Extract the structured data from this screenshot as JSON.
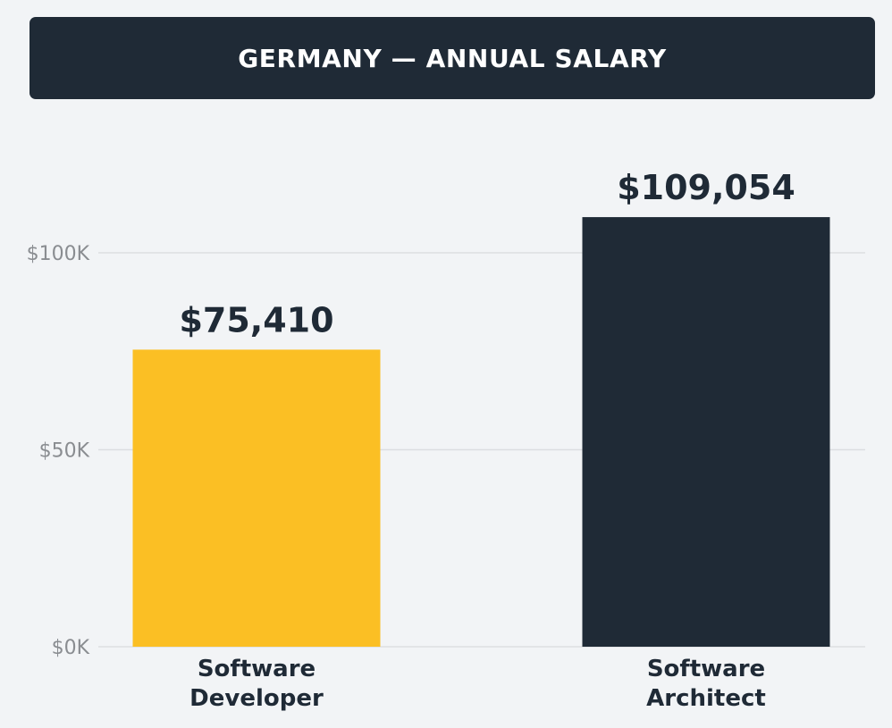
{
  "chart_data": {
    "type": "bar",
    "title": "GERMANY — ANNUAL SALARY",
    "categories": [
      "Software Developer",
      "Software Architect"
    ],
    "category_lines": [
      [
        "Software",
        "Developer"
      ],
      [
        "Software",
        "Architect"
      ]
    ],
    "values": [
      75410,
      109054
    ],
    "value_labels": [
      "$75,410",
      "$109,054"
    ],
    "bar_colors": [
      "#fbbf24",
      "#1f2a36"
    ],
    "yticks": [
      0,
      50000,
      100000
    ],
    "ytick_labels": [
      "$0K",
      "$50K",
      "$100K"
    ],
    "ylim": [
      0,
      100000
    ],
    "grid": true,
    "xlabel": "",
    "ylabel": ""
  },
  "colors": {
    "background": "#f2f4f6",
    "banner": "#1f2a36",
    "gridline": "#dcdee1",
    "tick_text": "#8a8d91",
    "label_text": "#1f2a36"
  }
}
